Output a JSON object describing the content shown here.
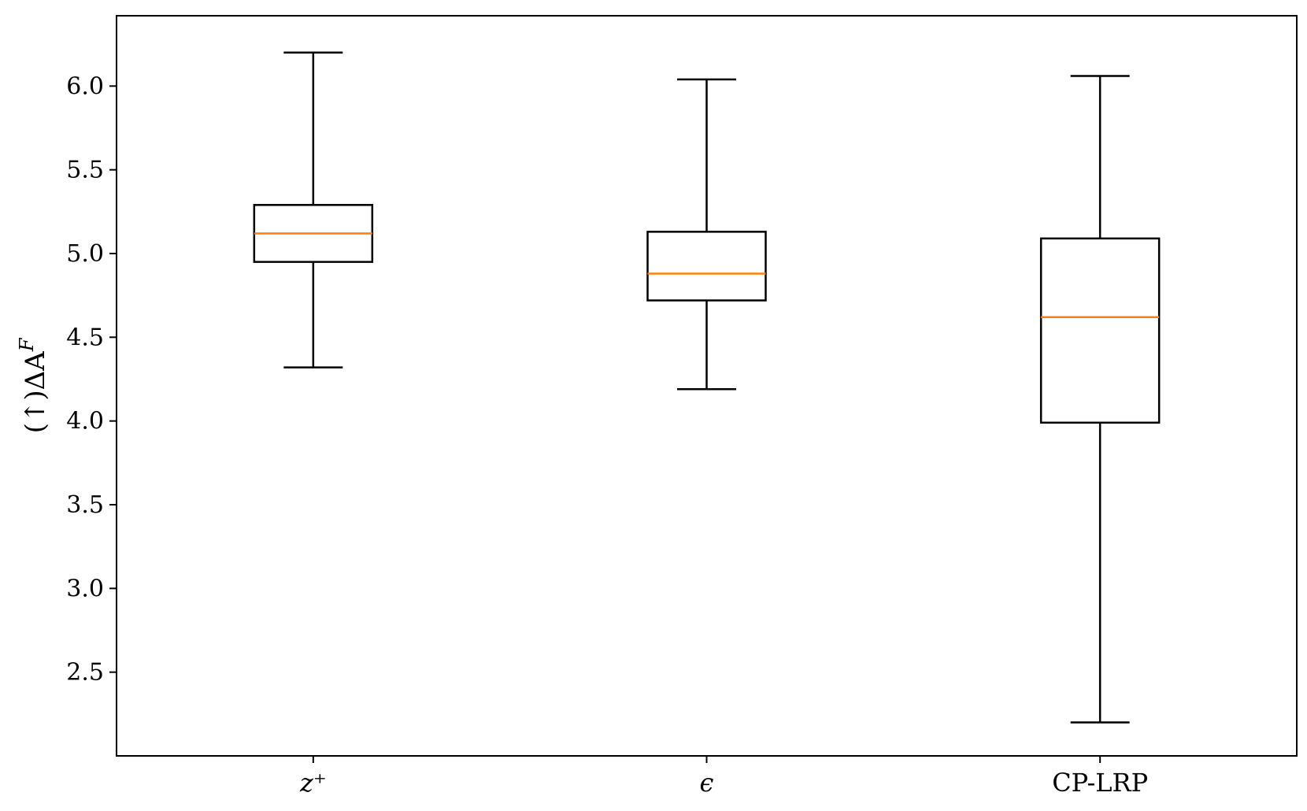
{
  "chart_data": {
    "type": "box",
    "categories": [
      "z⁺",
      "ϵ",
      "CP-LRP"
    ],
    "ylabel": "(↑)ΔA",
    "ylabel_superscript": "F",
    "ylim": [
      2.0,
      6.42
    ],
    "yticks": [
      "2.5",
      "3.0",
      "3.5",
      "4.0",
      "4.5",
      "5.0",
      "5.5",
      "6.0"
    ],
    "grid": false,
    "boxes": [
      {
        "label": "z⁺",
        "whisker_low": 4.32,
        "q1": 4.95,
        "median": 5.12,
        "q3": 5.29,
        "whisker_high": 6.2
      },
      {
        "label": "ϵ",
        "whisker_low": 4.19,
        "q1": 4.72,
        "median": 4.88,
        "q3": 5.13,
        "whisker_high": 6.04
      },
      {
        "label": "CP-LRP",
        "whisker_low": 2.2,
        "q1": 3.99,
        "median": 4.62,
        "q3": 5.09,
        "whisker_high": 6.06
      }
    ],
    "colors": {
      "box": "#000000",
      "median": "#ff7f0e"
    }
  }
}
